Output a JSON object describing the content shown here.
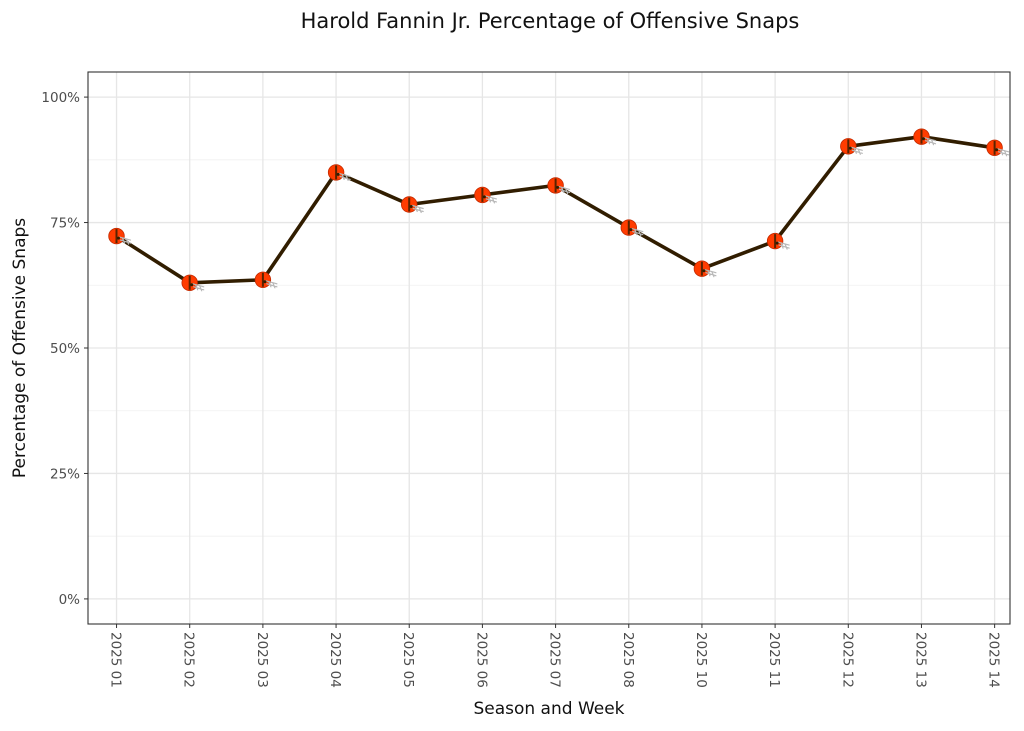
{
  "chart_data": {
    "type": "line",
    "title": "Harold Fannin Jr. Percentage of Offensive Snaps",
    "xlabel": "Season and Week",
    "ylabel": "Percentage of Offensive Snaps",
    "categories": [
      "2025 01",
      "2025 02",
      "2025 03",
      "2025 04",
      "2025 05",
      "2025 06",
      "2025 07",
      "2025 08",
      "2025 10",
      "2025 11",
      "2025 12",
      "2025 13",
      "2025 14"
    ],
    "series": [
      {
        "values": [
          72.3,
          63.0,
          63.6,
          85.0,
          78.6,
          80.5,
          82.4,
          74.0,
          65.8,
          71.3,
          90.2,
          92.1,
          89.9
        ]
      }
    ],
    "ylim": [
      -5,
      105
    ],
    "yticks": [
      0,
      25,
      50,
      75,
      100
    ],
    "ytick_labels": [
      "0%",
      "25%",
      "50%",
      "75%",
      "100%"
    ],
    "grid": true,
    "line_color": "#311d00",
    "marker_color": "#ff3c00",
    "marker_icon": "helmet-icon"
  }
}
